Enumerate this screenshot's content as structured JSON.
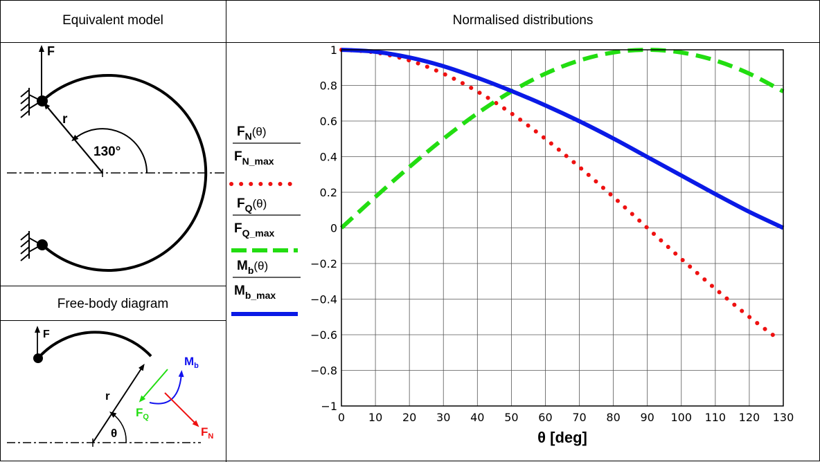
{
  "header": {
    "left_title": "Equivalent model",
    "right_title": "Normalised distributions"
  },
  "model": {
    "force_label": "F",
    "radius_label": "r",
    "angle_label": "130°"
  },
  "fbd": {
    "title": "Free-body diagram",
    "force_label": "F",
    "radius_label": "r",
    "angle_label": "θ",
    "fq_label": "F",
    "fq_sub": "Q",
    "fn_label": "F",
    "fn_sub": "N",
    "mb_label": "M",
    "mb_sub": "b",
    "colors": {
      "fq": "#22dd11",
      "fn": "#ee1111",
      "mb": "#1111ee"
    }
  },
  "chart_data": {
    "type": "line",
    "xlabel": "θ [deg]",
    "xlim": [
      0,
      130
    ],
    "ylim": [
      -1,
      1
    ],
    "x_ticks": [
      "0",
      "10",
      "20",
      "30",
      "40",
      "50",
      "60",
      "70",
      "80",
      "90",
      "100",
      "110",
      "120",
      "130"
    ],
    "y_ticks": [
      "1",
      "0.8",
      "0.6",
      "0.4",
      "0.2",
      "0",
      "−0.2",
      "−0.4",
      "−0.6",
      "−0.8",
      "−1"
    ],
    "grid": true,
    "legend_position": "left",
    "series": [
      {
        "name": "F_N(θ)/F_N_max",
        "color": "#ee1111",
        "style": "dotted",
        "x": [
          0,
          10,
          20,
          30,
          40,
          50,
          60,
          70,
          80,
          90,
          100,
          110,
          120,
          127
        ],
        "y": [
          1.0,
          0.985,
          0.94,
          0.866,
          0.766,
          0.643,
          0.5,
          0.342,
          0.174,
          0.0,
          -0.174,
          -0.342,
          -0.5,
          -0.602
        ]
      },
      {
        "name": "F_Q(θ)/F_Q_max",
        "color": "#22dd11",
        "style": "dashed",
        "x": [
          0,
          10,
          20,
          30,
          40,
          50,
          60,
          70,
          80,
          90,
          100,
          110,
          120,
          130
        ],
        "y": [
          0.0,
          0.174,
          0.342,
          0.5,
          0.643,
          0.766,
          0.866,
          0.94,
          0.985,
          1.0,
          0.985,
          0.94,
          0.866,
          0.766
        ]
      },
      {
        "name": "M_b(θ)/M_b_max",
        "color": "#0a1ae6",
        "style": "solid",
        "x": [
          0,
          10,
          20,
          30,
          40,
          50,
          60,
          70,
          80,
          90,
          100,
          110,
          120,
          130
        ],
        "y": [
          1.0,
          0.989,
          0.957,
          0.908,
          0.843,
          0.769,
          0.688,
          0.599,
          0.502,
          0.398,
          0.294,
          0.19,
          0.09,
          0.0
        ]
      }
    ],
    "legend": [
      {
        "num_main": "F",
        "num_sub": "N",
        "num_arg": "(θ)",
        "den_main": "F",
        "den_sub": "N_max",
        "color": "#ee1111",
        "style": "dotted"
      },
      {
        "num_main": "F",
        "num_sub": "Q",
        "num_arg": "(θ)",
        "den_main": "F",
        "den_sub": "Q_max",
        "color": "#22dd11",
        "style": "dashed"
      },
      {
        "num_main": "M",
        "num_sub": "b",
        "num_arg": "(θ)",
        "den_main": "M",
        "den_sub": "b_max",
        "color": "#0a1ae6",
        "style": "solid"
      }
    ]
  }
}
